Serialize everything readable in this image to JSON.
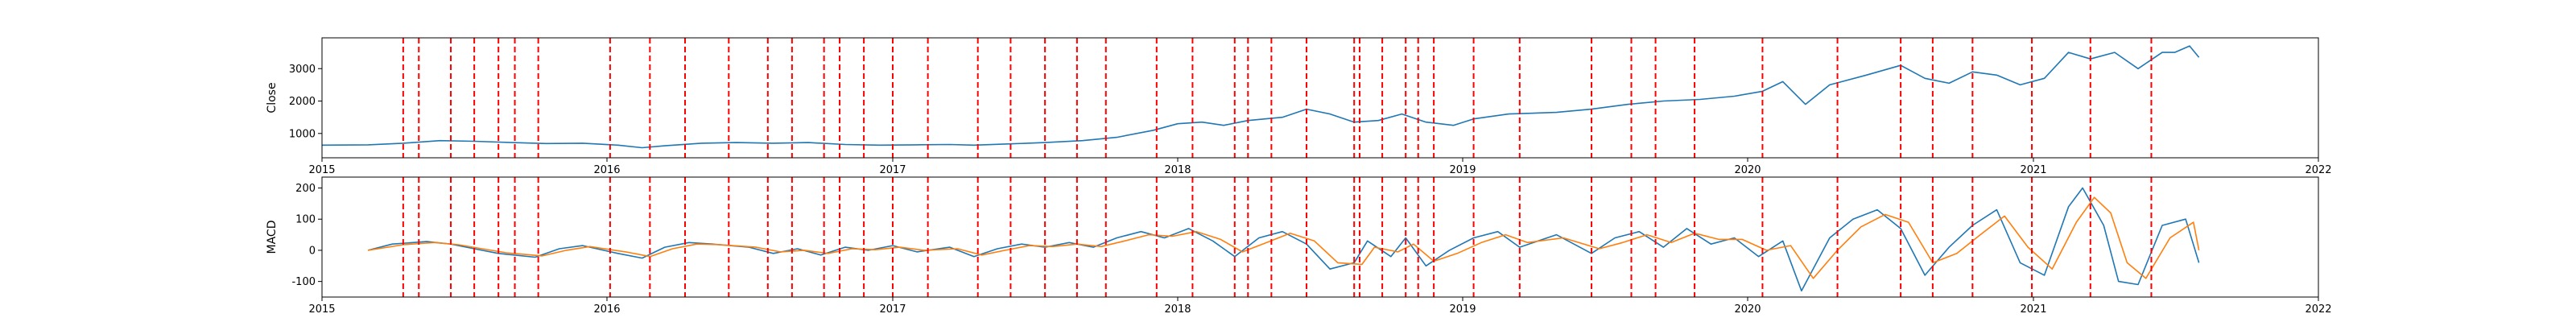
{
  "chart_data": [
    {
      "type": "line",
      "ylabel": "Close",
      "xlim": [
        "2015-01-01",
        "2022-01-01"
      ],
      "xticks": [
        "2015",
        "2016",
        "2017",
        "2018",
        "2019",
        "2020",
        "2021",
        "2022"
      ],
      "ylim": [
        250,
        3950
      ],
      "yticks": [
        1000,
        2000,
        3000
      ],
      "series": [
        {
          "color": "#1f77b4",
          "points": [
            [
              "2015-01-01",
              640
            ],
            [
              "2015-03-01",
              650
            ],
            [
              "2015-04-15",
              700
            ],
            [
              "2015-06-01",
              780
            ],
            [
              "2015-07-15",
              760
            ],
            [
              "2015-09-01",
              720
            ],
            [
              "2015-10-15",
              690
            ],
            [
              "2015-12-01",
              700
            ],
            [
              "2016-01-15",
              640
            ],
            [
              "2016-02-15",
              560
            ],
            [
              "2016-03-15",
              620
            ],
            [
              "2016-05-01",
              700
            ],
            [
              "2016-06-15",
              720
            ],
            [
              "2016-08-01",
              700
            ],
            [
              "2016-09-15",
              720
            ],
            [
              "2016-11-01",
              660
            ],
            [
              "2016-12-15",
              640
            ],
            [
              "2017-02-01",
              650
            ],
            [
              "2017-03-15",
              660
            ],
            [
              "2017-04-15",
              640
            ],
            [
              "2017-06-01",
              680
            ],
            [
              "2017-07-15",
              720
            ],
            [
              "2017-09-01",
              780
            ],
            [
              "2017-10-15",
              880
            ],
            [
              "2017-12-01",
              1100
            ],
            [
              "2018-01-01",
              1300
            ],
            [
              "2018-02-01",
              1350
            ],
            [
              "2018-03-01",
              1250
            ],
            [
              "2018-04-01",
              1400
            ],
            [
              "2018-05-15",
              1500
            ],
            [
              "2018-06-15",
              1750
            ],
            [
              "2018-07-15",
              1600
            ],
            [
              "2018-08-15",
              1350
            ],
            [
              "2018-09-15",
              1400
            ],
            [
              "2018-10-15",
              1600
            ],
            [
              "2018-11-15",
              1350
            ],
            [
              "2018-12-20",
              1250
            ],
            [
              "2019-01-15",
              1450
            ],
            [
              "2019-03-01",
              1600
            ],
            [
              "2019-05-01",
              1650
            ],
            [
              "2019-06-15",
              1750
            ],
            [
              "2019-08-01",
              1900
            ],
            [
              "2019-09-15",
              2000
            ],
            [
              "2019-11-01",
              2050
            ],
            [
              "2019-12-15",
              2150
            ],
            [
              "2020-01-20",
              2300
            ],
            [
              "2020-02-15",
              2600
            ],
            [
              "2020-03-15",
              1900
            ],
            [
              "2020-04-15",
              2500
            ],
            [
              "2020-06-01",
              2800
            ],
            [
              "2020-07-15",
              3100
            ],
            [
              "2020-08-15",
              2700
            ],
            [
              "2020-09-15",
              2550
            ],
            [
              "2020-10-15",
              2900
            ],
            [
              "2020-11-15",
              2800
            ],
            [
              "2020-12-15",
              2500
            ],
            [
              "2021-01-15",
              2700
            ],
            [
              "2021-02-15",
              3500
            ],
            [
              "2021-03-15",
              3300
            ],
            [
              "2021-04-15",
              3500
            ],
            [
              "2021-05-15",
              3000
            ],
            [
              "2021-06-15",
              3500
            ],
            [
              "2021-07-01",
              3500
            ],
            [
              "2021-07-20",
              3700
            ],
            [
              "2021-08-01",
              3350
            ]
          ]
        }
      ]
    },
    {
      "type": "line",
      "ylabel": "MACD",
      "xlim": [
        "2015-01-01",
        "2022-01-01"
      ],
      "xticks": [
        "2015",
        "2016",
        "2017",
        "2018",
        "2019",
        "2020",
        "2021",
        "2022"
      ],
      "ylim": [
        -150,
        235
      ],
      "yticks": [
        -100,
        0,
        100,
        200
      ],
      "series": [
        {
          "color": "#1f77b4",
          "points": [
            [
              "2015-03-01",
              0
            ],
            [
              "2015-04-01",
              20
            ],
            [
              "2015-05-15",
              28
            ],
            [
              "2015-06-15",
              20
            ],
            [
              "2015-07-15",
              5
            ],
            [
              "2015-08-15",
              -10
            ],
            [
              "2015-10-01",
              -22
            ],
            [
              "2015-11-01",
              5
            ],
            [
              "2015-12-01",
              15
            ],
            [
              "2016-01-15",
              -10
            ],
            [
              "2016-02-15",
              -25
            ],
            [
              "2016-03-15",
              10
            ],
            [
              "2016-04-15",
              25
            ],
            [
              "2016-05-15",
              20
            ],
            [
              "2016-07-01",
              10
            ],
            [
              "2016-08-01",
              -10
            ],
            [
              "2016-09-01",
              5
            ],
            [
              "2016-10-01",
              -15
            ],
            [
              "2016-11-01",
              10
            ],
            [
              "2016-12-01",
              0
            ],
            [
              "2017-01-01",
              15
            ],
            [
              "2017-02-01",
              -5
            ],
            [
              "2017-03-15",
              10
            ],
            [
              "2017-04-15",
              -20
            ],
            [
              "2017-05-15",
              5
            ],
            [
              "2017-06-15",
              20
            ],
            [
              "2017-07-15",
              10
            ],
            [
              "2017-08-15",
              25
            ],
            [
              "2017-09-15",
              10
            ],
            [
              "2017-10-15",
              40
            ],
            [
              "2017-11-15",
              60
            ],
            [
              "2017-12-15",
              40
            ],
            [
              "2018-01-15",
              70
            ],
            [
              "2018-02-15",
              30
            ],
            [
              "2018-03-15",
              -20
            ],
            [
              "2018-04-15",
              40
            ],
            [
              "2018-05-15",
              60
            ],
            [
              "2018-06-15",
              20
            ],
            [
              "2018-07-15",
              -60
            ],
            [
              "2018-08-15",
              -40
            ],
            [
              "2018-09-01",
              30
            ],
            [
              "2018-10-01",
              -20
            ],
            [
              "2018-10-20",
              40
            ],
            [
              "2018-11-15",
              -50
            ],
            [
              "2018-12-15",
              0
            ],
            [
              "2019-01-15",
              40
            ],
            [
              "2019-02-15",
              60
            ],
            [
              "2019-03-15",
              10
            ],
            [
              "2019-05-01",
              50
            ],
            [
              "2019-06-15",
              -10
            ],
            [
              "2019-07-15",
              40
            ],
            [
              "2019-08-15",
              60
            ],
            [
              "2019-09-15",
              10
            ],
            [
              "2019-10-15",
              70
            ],
            [
              "2019-11-15",
              20
            ],
            [
              "2019-12-15",
              40
            ],
            [
              "2020-01-15",
              -20
            ],
            [
              "2020-02-15",
              30
            ],
            [
              "2020-03-10",
              -130
            ],
            [
              "2020-04-15",
              40
            ],
            [
              "2020-05-15",
              100
            ],
            [
              "2020-06-15",
              130
            ],
            [
              "2020-07-15",
              70
            ],
            [
              "2020-08-15",
              -80
            ],
            [
              "2020-09-15",
              10
            ],
            [
              "2020-10-15",
              80
            ],
            [
              "2020-11-15",
              130
            ],
            [
              "2020-12-15",
              -40
            ],
            [
              "2021-01-15",
              -80
            ],
            [
              "2021-02-15",
              140
            ],
            [
              "2021-03-05",
              200
            ],
            [
              "2021-04-01",
              80
            ],
            [
              "2021-04-20",
              -100
            ],
            [
              "2021-05-15",
              -110
            ],
            [
              "2021-06-15",
              80
            ],
            [
              "2021-07-15",
              100
            ],
            [
              "2021-08-01",
              -40
            ]
          ]
        },
        {
          "color": "#ff7f0e",
          "points": [
            [
              "2015-03-01",
              0
            ],
            [
              "2015-04-15",
              18
            ],
            [
              "2015-05-25",
              25
            ],
            [
              "2015-06-25",
              18
            ],
            [
              "2015-07-25",
              5
            ],
            [
              "2015-08-25",
              -8
            ],
            [
              "2015-10-10",
              -18
            ],
            [
              "2015-11-10",
              0
            ],
            [
              "2015-12-10",
              12
            ],
            [
              "2016-01-25",
              -5
            ],
            [
              "2016-02-25",
              -20
            ],
            [
              "2016-03-25",
              5
            ],
            [
              "2016-04-25",
              20
            ],
            [
              "2016-05-25",
              18
            ],
            [
              "2016-07-10",
              10
            ],
            [
              "2016-08-10",
              -5
            ],
            [
              "2016-09-10",
              0
            ],
            [
              "2016-10-10",
              -10
            ],
            [
              "2016-11-10",
              5
            ],
            [
              "2016-12-10",
              2
            ],
            [
              "2017-01-10",
              10
            ],
            [
              "2017-02-10",
              0
            ],
            [
              "2017-03-25",
              5
            ],
            [
              "2017-04-25",
              -15
            ],
            [
              "2017-05-25",
              0
            ],
            [
              "2017-06-25",
              15
            ],
            [
              "2017-07-25",
              12
            ],
            [
              "2017-08-25",
              20
            ],
            [
              "2017-09-25",
              12
            ],
            [
              "2017-10-25",
              30
            ],
            [
              "2017-11-25",
              50
            ],
            [
              "2017-12-25",
              45
            ],
            [
              "2018-01-25",
              60
            ],
            [
              "2018-02-25",
              35
            ],
            [
              "2018-03-25",
              -5
            ],
            [
              "2018-04-25",
              25
            ],
            [
              "2018-05-25",
              55
            ],
            [
              "2018-06-25",
              30
            ],
            [
              "2018-07-25",
              -40
            ],
            [
              "2018-08-25",
              -45
            ],
            [
              "2018-09-10",
              10
            ],
            [
              "2018-10-10",
              -5
            ],
            [
              "2018-10-30",
              20
            ],
            [
              "2018-11-25",
              -35
            ],
            [
              "2018-12-25",
              -10
            ],
            [
              "2019-01-25",
              25
            ],
            [
              "2019-02-25",
              50
            ],
            [
              "2019-03-25",
              25
            ],
            [
              "2019-05-10",
              40
            ],
            [
              "2019-06-25",
              5
            ],
            [
              "2019-07-25",
              25
            ],
            [
              "2019-08-25",
              50
            ],
            [
              "2019-09-25",
              25
            ],
            [
              "2019-10-25",
              55
            ],
            [
              "2019-11-25",
              35
            ],
            [
              "2019-12-25",
              35
            ],
            [
              "2020-01-25",
              0
            ],
            [
              "2020-02-25",
              15
            ],
            [
              "2020-03-25",
              -90
            ],
            [
              "2020-04-25",
              0
            ],
            [
              "2020-05-25",
              75
            ],
            [
              "2020-06-25",
              115
            ],
            [
              "2020-07-25",
              90
            ],
            [
              "2020-08-25",
              -40
            ],
            [
              "2020-09-25",
              -10
            ],
            [
              "2020-10-25",
              50
            ],
            [
              "2020-11-25",
              110
            ],
            [
              "2020-12-25",
              10
            ],
            [
              "2021-01-25",
              -60
            ],
            [
              "2021-02-25",
              90
            ],
            [
              "2021-03-20",
              170
            ],
            [
              "2021-04-10",
              120
            ],
            [
              "2021-05-01",
              -40
            ],
            [
              "2021-05-25",
              -90
            ],
            [
              "2021-06-25",
              40
            ],
            [
              "2021-07-25",
              90
            ],
            [
              "2021-08-01",
              0
            ]
          ]
        }
      ]
    }
  ],
  "event_markers": {
    "color": "#ff0000",
    "dates": [
      "2015-04-15",
      "2015-05-05",
      "2015-06-15",
      "2015-07-15",
      "2015-08-15",
      "2015-09-05",
      "2015-10-05",
      "2016-01-05",
      "2016-02-25",
      "2016-04-10",
      "2016-06-05",
      "2016-07-25",
      "2016-08-25",
      "2016-10-05",
      "2016-10-25",
      "2016-11-25",
      "2017-01-01",
      "2017-02-15",
      "2017-04-20",
      "2017-06-01",
      "2017-07-15",
      "2017-08-25",
      "2017-10-01",
      "2017-12-05",
      "2018-01-20",
      "2018-03-15",
      "2018-04-01",
      "2018-05-01",
      "2018-06-15",
      "2018-08-15",
      "2018-08-22",
      "2018-09-20",
      "2018-10-20",
      "2018-11-05",
      "2018-11-25",
      "2019-01-15",
      "2019-03-15",
      "2019-06-15",
      "2019-08-05",
      "2019-09-05",
      "2019-10-25",
      "2020-01-20",
      "2020-04-25",
      "2020-07-15",
      "2020-08-25",
      "2020-10-15",
      "2020-12-30",
      "2021-03-15",
      "2021-06-01"
    ]
  }
}
